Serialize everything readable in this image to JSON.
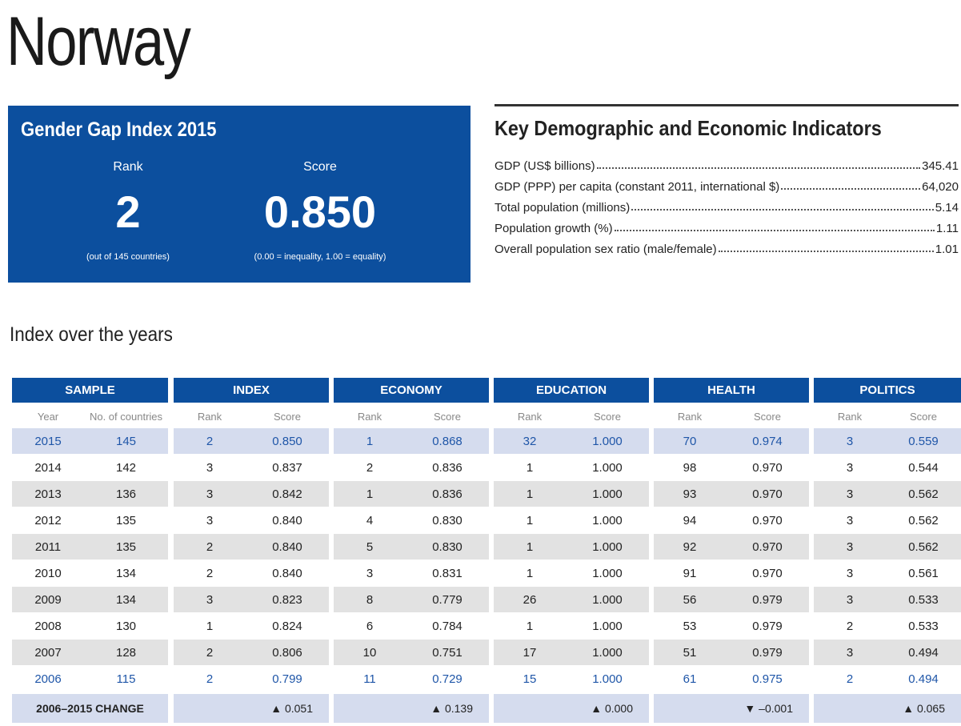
{
  "title": "Norway",
  "ggi": {
    "title": "Gender Gap Index 2015",
    "rank_label": "Rank",
    "rank": "2",
    "rank_note": "(out of 145 countries)",
    "score_label": "Score",
    "score": "0.850",
    "score_note": "(0.00 = inequality, 1.00 = equality)"
  },
  "indicators": {
    "title": "Key Demographic and Economic Indicators",
    "rows": [
      [
        "GDP (US$ billions)",
        "345.41"
      ],
      [
        "GDP (PPP) per capita (constant 2011, international $)",
        "64,020"
      ],
      [
        "Total population (millions)",
        "5.14"
      ],
      [
        "Population growth (%)",
        "1.11"
      ],
      [
        "Overall population sex ratio (male/female)",
        "1.01"
      ]
    ]
  },
  "table": {
    "title": "Index over the years",
    "groups": [
      "SAMPLE",
      "INDEX",
      "ECONOMY",
      "EDUCATION",
      "HEALTH",
      "POLITICS"
    ],
    "subheaders": [
      "Year",
      "No. of countries",
      "Rank",
      "Score",
      "Rank",
      "Score",
      "Rank",
      "Score",
      "Rank",
      "Score",
      "Rank",
      "Score"
    ],
    "rows": [
      [
        "2015",
        "145",
        "2",
        "0.850",
        "1",
        "0.868",
        "32",
        "1.000",
        "70",
        "0.974",
        "3",
        "0.559"
      ],
      [
        "2014",
        "142",
        "3",
        "0.837",
        "2",
        "0.836",
        "1",
        "1.000",
        "98",
        "0.970",
        "3",
        "0.544"
      ],
      [
        "2013",
        "136",
        "3",
        "0.842",
        "1",
        "0.836",
        "1",
        "1.000",
        "93",
        "0.970",
        "3",
        "0.562"
      ],
      [
        "2012",
        "135",
        "3",
        "0.840",
        "4",
        "0.830",
        "1",
        "1.000",
        "94",
        "0.970",
        "3",
        "0.562"
      ],
      [
        "2011",
        "135",
        "2",
        "0.840",
        "5",
        "0.830",
        "1",
        "1.000",
        "92",
        "0.970",
        "3",
        "0.562"
      ],
      [
        "2010",
        "134",
        "2",
        "0.840",
        "3",
        "0.831",
        "1",
        "1.000",
        "91",
        "0.970",
        "3",
        "0.561"
      ],
      [
        "2009",
        "134",
        "3",
        "0.823",
        "8",
        "0.779",
        "26",
        "1.000",
        "56",
        "0.979",
        "3",
        "0.533"
      ],
      [
        "2008",
        "130",
        "1",
        "0.824",
        "6",
        "0.784",
        "1",
        "1.000",
        "53",
        "0.979",
        "2",
        "0.533"
      ],
      [
        "2007",
        "128",
        "2",
        "0.806",
        "10",
        "0.751",
        "17",
        "1.000",
        "51",
        "0.979",
        "3",
        "0.494"
      ],
      [
        "2006",
        "115",
        "2",
        "0.799",
        "11",
        "0.729",
        "15",
        "1.000",
        "61",
        "0.975",
        "2",
        "0.494"
      ]
    ],
    "change_label": "2006–2015 CHANGE",
    "changes": [
      "▲ 0.051",
      "▲ 0.139",
      "▲ 0.000",
      "▼ –0.001",
      "▲ 0.065"
    ]
  }
}
